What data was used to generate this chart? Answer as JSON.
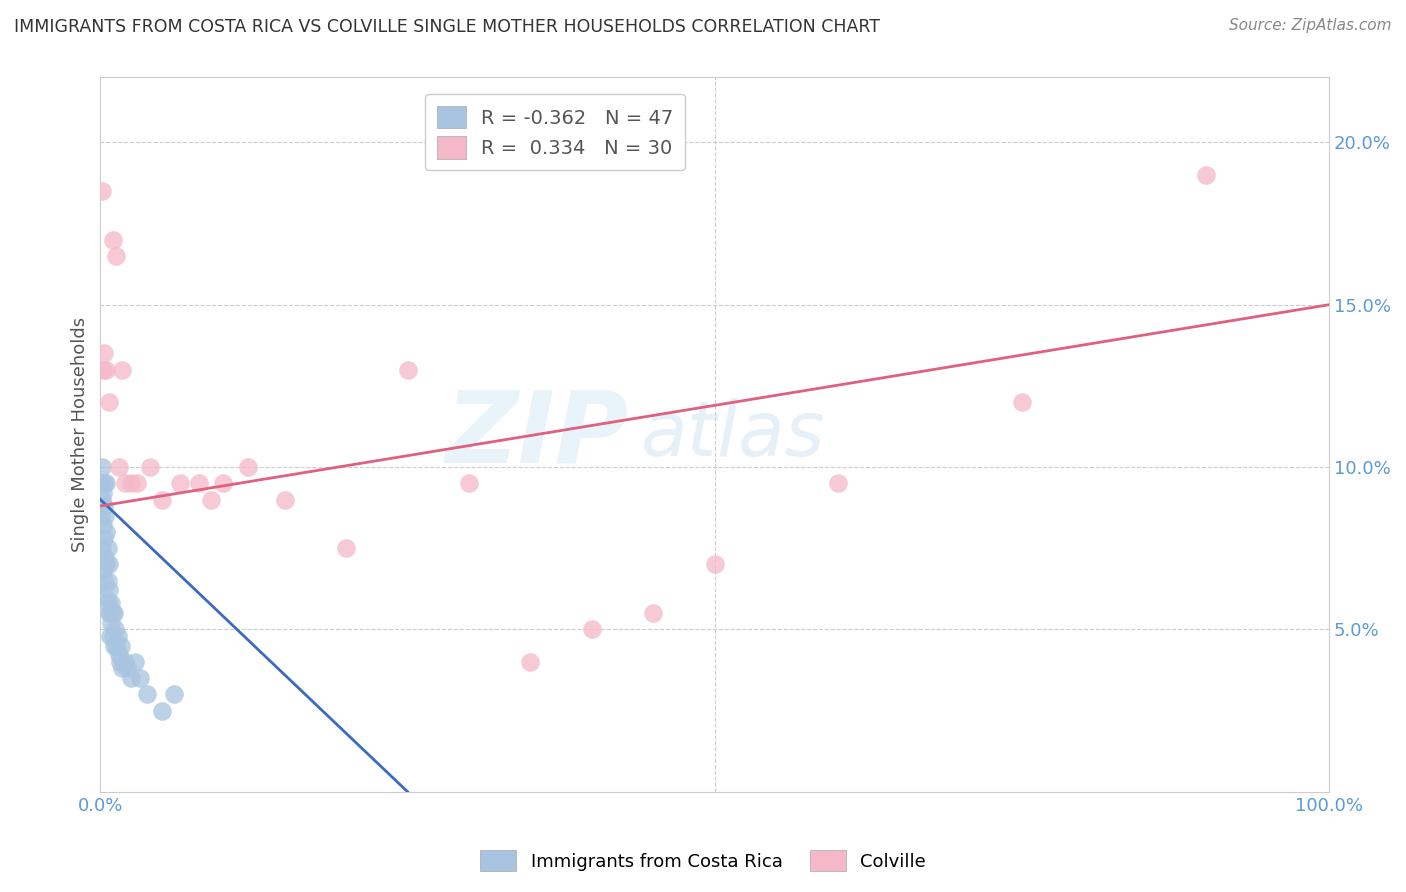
{
  "title": "IMMIGRANTS FROM COSTA RICA VS COLVILLE SINGLE MOTHER HOUSEHOLDS CORRELATION CHART",
  "source": "Source: ZipAtlas.com",
  "ylabel": "Single Mother Households",
  "xlim": [
    0,
    1.0
  ],
  "ylim": [
    0,
    0.22
  ],
  "legend_blue_r": "-0.362",
  "legend_blue_n": "47",
  "legend_pink_r": "0.334",
  "legend_pink_n": "30",
  "blue_color": "#a8c4e0",
  "blue_line_color": "#3a6bbf",
  "pink_color": "#f4b8c8",
  "pink_line_color": "#e06080",
  "title_color": "#333333",
  "axis_label_color": "#5b9bd5",
  "watermark_zip": "ZIP",
  "watermark_atlas": "atlas",
  "blue_points_x": [
    0.0005,
    0.001,
    0.001,
    0.0015,
    0.0015,
    0.002,
    0.002,
    0.002,
    0.003,
    0.003,
    0.003,
    0.003,
    0.004,
    0.004,
    0.004,
    0.005,
    0.005,
    0.005,
    0.006,
    0.006,
    0.006,
    0.007,
    0.007,
    0.007,
    0.008,
    0.008,
    0.009,
    0.009,
    0.01,
    0.01,
    0.011,
    0.011,
    0.012,
    0.013,
    0.014,
    0.015,
    0.016,
    0.017,
    0.018,
    0.02,
    0.022,
    0.025,
    0.028,
    0.032,
    0.038,
    0.05,
    0.06
  ],
  "blue_points_y": [
    0.085,
    0.09,
    0.095,
    0.075,
    0.1,
    0.092,
    0.068,
    0.082,
    0.088,
    0.078,
    0.065,
    0.095,
    0.085,
    0.072,
    0.06,
    0.095,
    0.07,
    0.08,
    0.058,
    0.065,
    0.075,
    0.055,
    0.062,
    0.07,
    0.055,
    0.048,
    0.052,
    0.058,
    0.048,
    0.055,
    0.045,
    0.055,
    0.05,
    0.045,
    0.048,
    0.042,
    0.04,
    0.045,
    0.038,
    0.04,
    0.038,
    0.035,
    0.04,
    0.035,
    0.03,
    0.025,
    0.03
  ],
  "pink_points_x": [
    0.001,
    0.002,
    0.003,
    0.005,
    0.007,
    0.01,
    0.013,
    0.015,
    0.018,
    0.02,
    0.025,
    0.03,
    0.04,
    0.05,
    0.065,
    0.08,
    0.09,
    0.1,
    0.12,
    0.15,
    0.2,
    0.25,
    0.3,
    0.35,
    0.4,
    0.45,
    0.5,
    0.6,
    0.75,
    0.9
  ],
  "pink_points_y": [
    0.185,
    0.13,
    0.135,
    0.13,
    0.12,
    0.17,
    0.165,
    0.1,
    0.13,
    0.095,
    0.095,
    0.095,
    0.1,
    0.09,
    0.095,
    0.095,
    0.09,
    0.095,
    0.1,
    0.09,
    0.075,
    0.13,
    0.095,
    0.04,
    0.05,
    0.055,
    0.07,
    0.095,
    0.12,
    0.19
  ],
  "blue_trendline_x": [
    0.0,
    0.25
  ],
  "blue_trendline_y": [
    0.09,
    0.0
  ],
  "pink_trendline_x": [
    0.0,
    1.0
  ],
  "pink_trendline_y": [
    0.088,
    0.15
  ]
}
